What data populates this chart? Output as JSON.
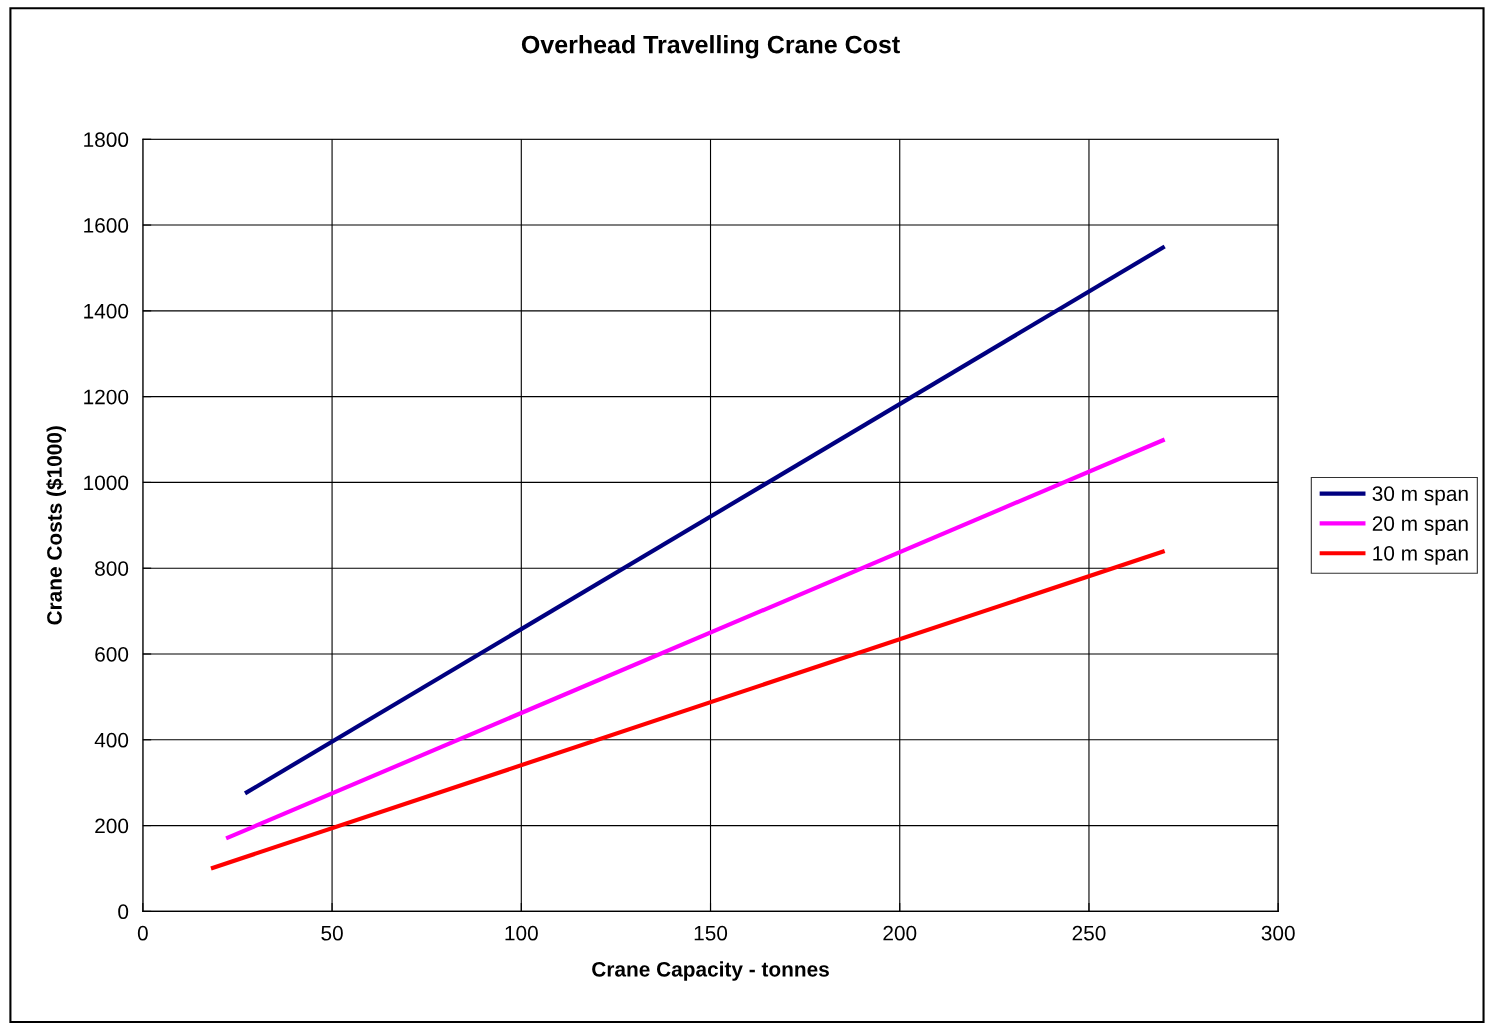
{
  "chart_data": {
    "type": "line",
    "title": "Overhead Travelling Crane Cost",
    "xlabel": "Crane Capacity - tonnes",
    "ylabel": "Crane Costs ($1000)",
    "series": [
      {
        "name": "30 m span",
        "color": "#000080",
        "x": [
          27,
          270
        ],
        "values": [
          275,
          1550
        ]
      },
      {
        "name": "20 m span",
        "color": "#ff00ff",
        "x": [
          22,
          270
        ],
        "values": [
          170,
          1100
        ]
      },
      {
        "name": "10 m span",
        "color": "#ff0000",
        "x": [
          18,
          270
        ],
        "values": [
          100,
          840
        ]
      }
    ],
    "xlim": [
      0,
      300
    ],
    "xticks": [
      0,
      50,
      100,
      150,
      200,
      250,
      300
    ],
    "ylim": [
      0,
      1800
    ],
    "yticks": [
      0,
      200,
      400,
      600,
      800,
      1000,
      1200,
      1400,
      1600,
      1800
    ],
    "grid": true,
    "legend": "right",
    "marker": "none",
    "line_style": "solid"
  }
}
